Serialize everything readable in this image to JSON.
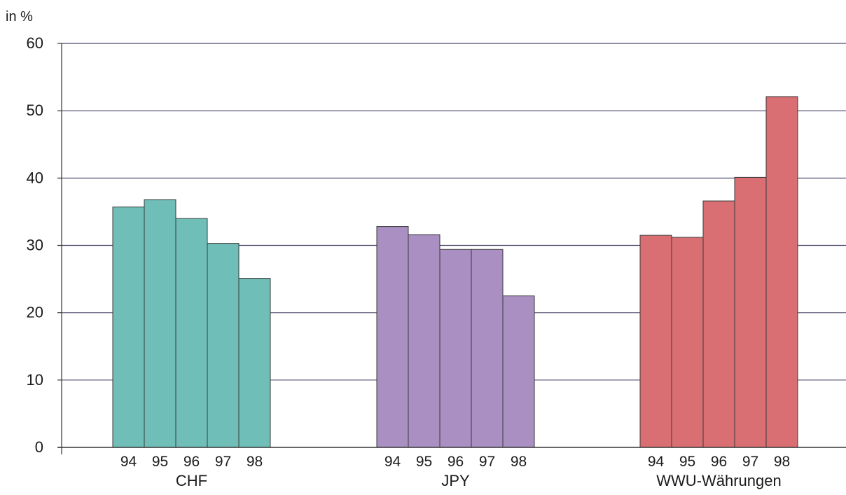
{
  "chart_data": {
    "type": "bar",
    "ylabel": "in %",
    "ylim": [
      0,
      60
    ],
    "yticks": [
      0,
      10,
      20,
      30,
      40,
      50,
      60
    ],
    "grid": true,
    "groups": [
      {
        "name": "CHF",
        "color": "#6fbfb8",
        "categories": [
          "94",
          "95",
          "96",
          "97",
          "98"
        ],
        "values": [
          35.7,
          36.8,
          34.0,
          30.3,
          25.1
        ]
      },
      {
        "name": "JPY",
        "color": "#a98fc2",
        "categories": [
          "94",
          "95",
          "96",
          "97",
          "98"
        ],
        "values": [
          32.8,
          31.6,
          29.4,
          29.4,
          22.5
        ]
      },
      {
        "name": "WWU-Währungen",
        "color": "#d96f72",
        "categories": [
          "94",
          "95",
          "96",
          "97",
          "98"
        ],
        "values": [
          31.5,
          31.2,
          36.6,
          40.1,
          52.1
        ]
      }
    ]
  }
}
